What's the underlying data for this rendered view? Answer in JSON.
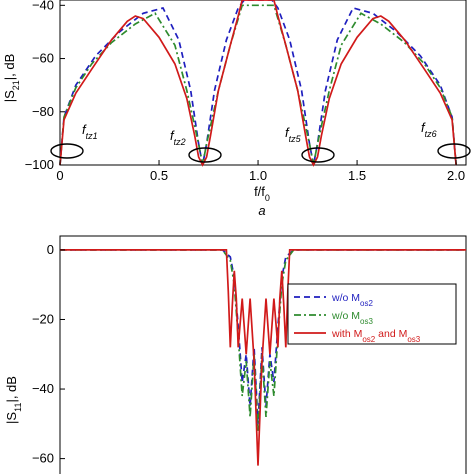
{
  "chart_data": [
    {
      "type": "line",
      "panel_label": "a",
      "ylabel": "|S21|, dB",
      "xlabel": "f/f0",
      "xlim": [
        0,
        2.05
      ],
      "ylim": [
        -100,
        -38
      ],
      "xticks": [
        "0",
        "0.5",
        "1.0",
        "1.5",
        "2.0"
      ],
      "yticks": [
        "-40",
        "-60",
        "-80",
        "-100"
      ],
      "annotations": [
        "ftz1",
        "ftz2",
        "ftz5",
        "ftz6"
      ],
      "series": [
        {
          "color": "#1f1fbf",
          "dash": "dashed",
          "x": [
            0,
            0.02,
            0.08,
            0.18,
            0.3,
            0.42,
            0.52,
            0.6,
            0.66,
            0.7,
            0.72,
            0.74,
            0.78,
            0.84,
            0.9,
            0.93,
            1.07,
            1.1,
            1.16,
            1.22,
            1.26,
            1.28,
            1.3,
            1.34,
            1.4,
            1.48,
            1.58,
            1.7,
            1.82,
            1.92,
            1.98,
            2.0
          ],
          "y": [
            -100,
            -82,
            -70,
            -59,
            -50,
            -43,
            -41,
            -53,
            -72,
            -92,
            -100,
            -92,
            -72,
            -53,
            -41,
            -38,
            -38,
            -41,
            -53,
            -72,
            -92,
            -100,
            -92,
            -72,
            -53,
            -41,
            -43,
            -50,
            -59,
            -70,
            -82,
            -100
          ]
        },
        {
          "color": "#2e8b2e",
          "dash": "dashdot",
          "x": [
            0,
            0.02,
            0.08,
            0.16,
            0.26,
            0.38,
            0.48,
            0.58,
            0.64,
            0.7,
            0.72,
            0.74,
            0.8,
            0.86,
            0.92,
            1.08,
            1.14,
            1.2,
            1.26,
            1.28,
            1.3,
            1.36,
            1.42,
            1.52,
            1.62,
            1.74,
            1.84,
            1.92,
            1.98,
            2.0
          ],
          "y": [
            -100,
            -82,
            -71,
            -62,
            -54,
            -47,
            -43,
            -55,
            -72,
            -92,
            -100,
            -92,
            -72,
            -55,
            -40,
            -40,
            -55,
            -72,
            -92,
            -100,
            -92,
            -72,
            -55,
            -43,
            -47,
            -54,
            -62,
            -71,
            -82,
            -100
          ]
        },
        {
          "color": "#d11a1a",
          "dash": "solid",
          "x": [
            0,
            0.02,
            0.08,
            0.16,
            0.26,
            0.34,
            0.38,
            0.42,
            0.5,
            0.58,
            0.64,
            0.68,
            0.7,
            0.72,
            0.74,
            0.76,
            0.8,
            0.86,
            0.9,
            0.92,
            1.08,
            1.1,
            1.14,
            1.2,
            1.24,
            1.26,
            1.28,
            1.3,
            1.32,
            1.36,
            1.42,
            1.5,
            1.58,
            1.62,
            1.66,
            1.74,
            1.84,
            1.92,
            1.98,
            2.0
          ],
          "y": [
            -100,
            -83,
            -73,
            -64,
            -53,
            -46,
            -44,
            -45,
            -52,
            -62,
            -75,
            -89,
            -97,
            -100,
            -97,
            -89,
            -72,
            -55,
            -44,
            -38,
            -38,
            -44,
            -55,
            -72,
            -89,
            -97,
            -100,
            -97,
            -89,
            -75,
            -62,
            -52,
            -45,
            -44,
            -46,
            -53,
            -64,
            -73,
            -83,
            -100
          ]
        }
      ]
    },
    {
      "type": "line",
      "ylabel": "|S11|, dB",
      "xlabel": "",
      "xlim": [
        0,
        2.05
      ],
      "ylim": [
        -65,
        4
      ],
      "yticks": [
        "0",
        "-20",
        "-40",
        "-60"
      ],
      "legend_position": "right",
      "series": [
        {
          "color": "#1f1fbf",
          "dash": "dashed",
          "legend": [
            "w/o M",
            "os2",
            ""
          ],
          "x": [
            0,
            0.82,
            0.86,
            0.88,
            0.9,
            0.92,
            0.94,
            0.96,
            0.98,
            1.0,
            1.02,
            1.04,
            1.06,
            1.08,
            1.1,
            1.12,
            1.14,
            1.18,
            2.05
          ],
          "y": [
            0,
            0,
            -2,
            -8,
            -22,
            -38,
            -30,
            -45,
            -28,
            -50,
            -28,
            -45,
            -30,
            -38,
            -22,
            -8,
            -2,
            0,
            0
          ]
        },
        {
          "color": "#2e8b2e",
          "dash": "dashdot",
          "legend": [
            "w/o M",
            "os3",
            ""
          ],
          "x": [
            0,
            0.82,
            0.86,
            0.88,
            0.9,
            0.92,
            0.94,
            0.96,
            0.98,
            1.0,
            1.02,
            1.04,
            1.06,
            1.08,
            1.1,
            1.12,
            1.14,
            1.18,
            2.05
          ],
          "y": [
            0,
            0,
            -3,
            -10,
            -25,
            -42,
            -32,
            -48,
            -30,
            -52,
            -30,
            -48,
            -32,
            -42,
            -25,
            -10,
            -3,
            0,
            0
          ]
        },
        {
          "color": "#d11a1a",
          "dash": "solid",
          "legend": [
            "with M",
            "os2",
            " and M",
            "os3"
          ],
          "x": [
            0,
            0.84,
            0.85,
            0.86,
            0.87,
            0.88,
            0.89,
            0.9,
            0.92,
            0.94,
            0.96,
            0.98,
            1.0,
            1.02,
            1.04,
            1.06,
            1.08,
            1.1,
            1.11,
            1.12,
            1.13,
            1.14,
            1.15,
            1.16,
            2.05
          ],
          "y": [
            0,
            0,
            -12,
            -28,
            -16,
            -6,
            -14,
            -28,
            -14,
            -30,
            -14,
            -32,
            -62,
            -32,
            -14,
            -30,
            -14,
            -28,
            -14,
            -6,
            -16,
            -28,
            -12,
            0,
            0
          ]
        }
      ]
    }
  ]
}
